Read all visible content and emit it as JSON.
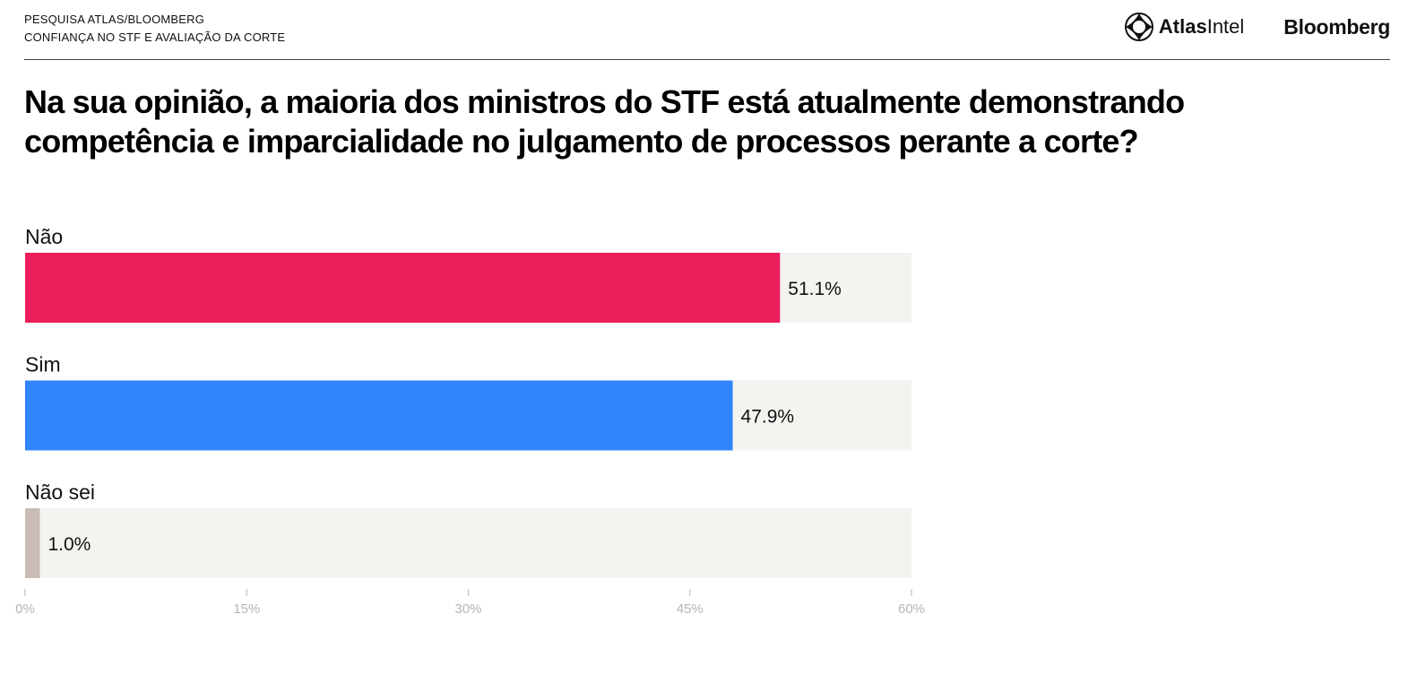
{
  "header": {
    "kicker_line1": "PESQUISA ATLAS/BLOOMBERG",
    "kicker_line2": "CONFIANÇA NO STF E AVALIAÇÃO DA CORTE",
    "logo_atlas_bold": "Atlas",
    "logo_atlas_regular": "Intel",
    "logo_bloomberg": "Bloomberg"
  },
  "question": "Na sua opinião, a maioria dos ministros do STF está atualmente demonstrando competência e imparcialidade no julgamento de processos perante a corte?",
  "colors": {
    "track": "#f4f3f0",
    "nao": "#ec1e5c",
    "sim": "#3284fc",
    "nao_sei": "#c9bcb5",
    "tick": "#b5b5b5"
  },
  "chart_data": {
    "type": "bar",
    "orientation": "horizontal",
    "categories": [
      "Não",
      "Sim",
      "Não sei"
    ],
    "values": [
      51.1,
      47.9,
      1.0
    ],
    "value_labels": [
      "51.1%",
      "47.9%",
      "1.0%"
    ],
    "bar_colors": [
      "#ec1e5c",
      "#3284fc",
      "#c9bcb5"
    ],
    "xlim": [
      0,
      60
    ],
    "xticks": [
      0,
      15,
      30,
      45,
      60
    ],
    "xtick_labels": [
      "0%",
      "15%",
      "30%",
      "45%",
      "60%"
    ],
    "title": "Na sua opinião, a maioria dos ministros do STF está atualmente demonstrando competência e imparcialidade no julgamento de processos perante a corte?",
    "xlabel": "",
    "ylabel": "",
    "grid": false,
    "legend": "none"
  }
}
